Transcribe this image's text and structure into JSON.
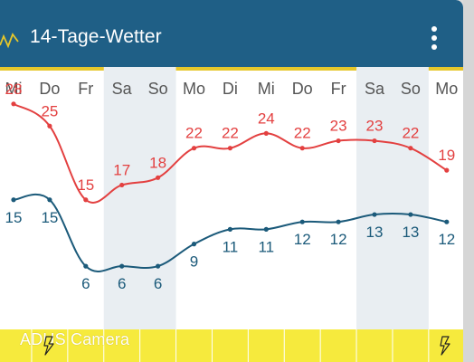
{
  "app": {
    "title": "14-Tage-Wetter",
    "menu_icon": "more-vertical-icon",
    "app_icon": "chart-line-icon"
  },
  "colors": {
    "header_bg": "#1f5f86",
    "accent_line": "#e6c72a",
    "weekend_bg": "#e9eef2",
    "high_temp": "#e34040",
    "low_temp": "#1b5a7a",
    "camera_bar": "#f6ea3d"
  },
  "chart_data": {
    "type": "line",
    "categories": [
      "Mi",
      "Do",
      "Fr",
      "Sa",
      "So",
      "Mo",
      "Di",
      "Mi",
      "Do",
      "Fr",
      "Sa",
      "So",
      "Mo"
    ],
    "weekend_days": [
      "Sa",
      "So"
    ],
    "series": [
      {
        "values": [
          28,
          25,
          15,
          17,
          18,
          22,
          22,
          24,
          22,
          23,
          23,
          22,
          19
        ]
      },
      {
        "values": [
          15,
          15,
          6,
          6,
          6,
          9,
          11,
          11,
          12,
          12,
          13,
          13,
          12
        ]
      }
    ],
    "title": "",
    "xlabel": "",
    "ylabel": ""
  },
  "camera_bar": {
    "label": "ADUS Camera",
    "bolt_icon": "lightning-bolt-icon"
  }
}
